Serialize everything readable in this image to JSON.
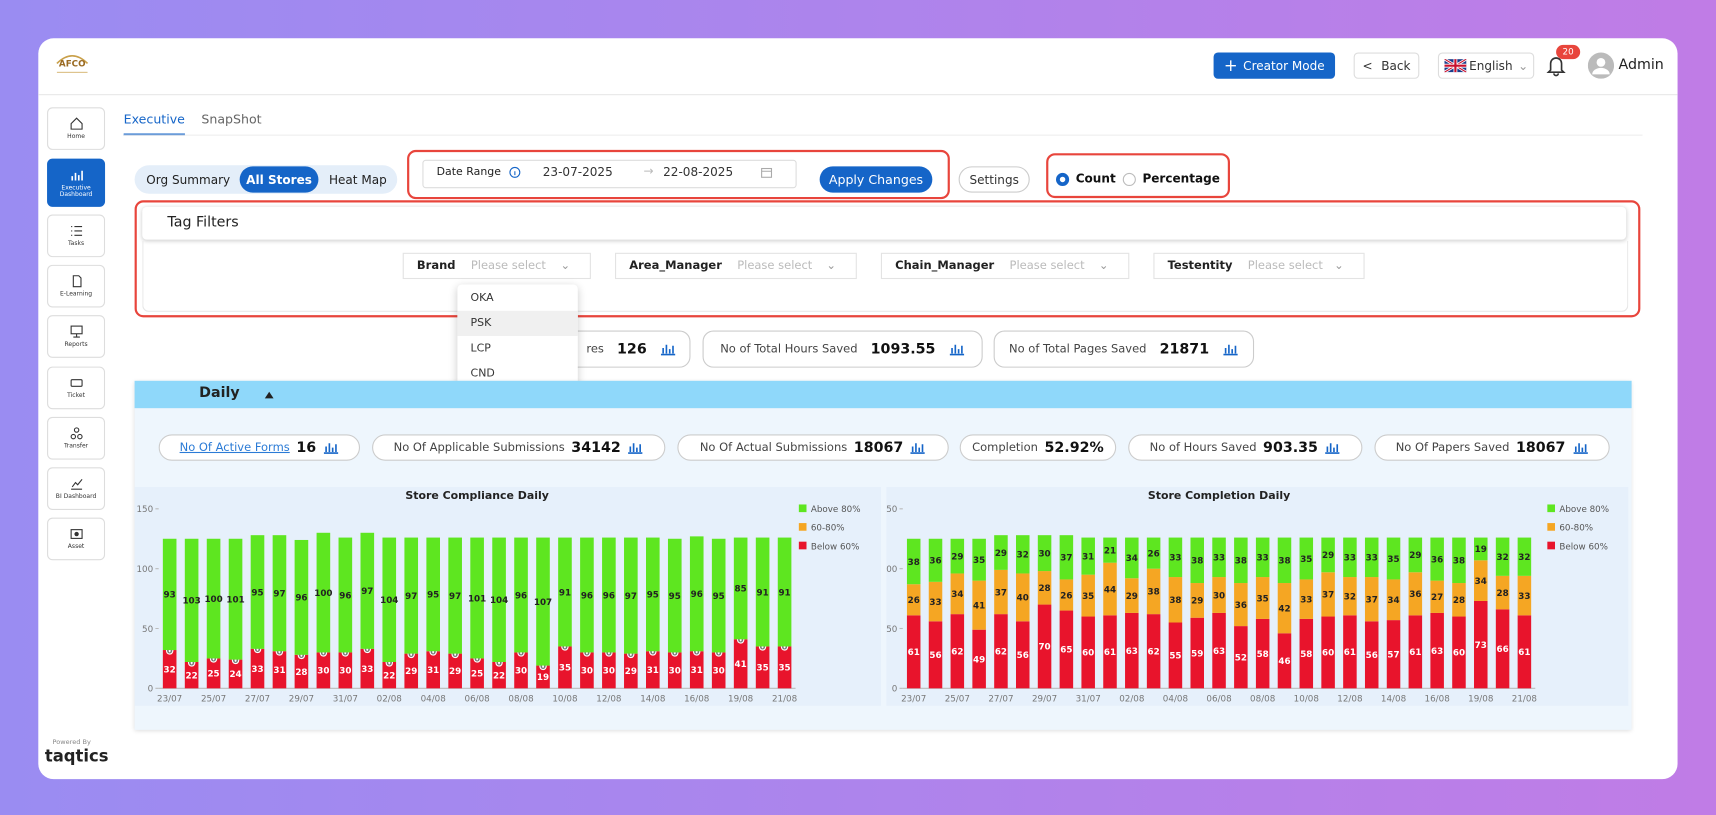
{
  "header": {
    "logo": "AFCO",
    "creator": "Creator Mode",
    "back": "Back",
    "language": "English",
    "notifications": "20",
    "user": "Admin"
  },
  "sidebar": {
    "items": [
      "Home",
      "Executive Dashboard",
      "Tasks",
      "E-Learning",
      "Reports",
      "Ticket",
      "Transfer",
      "BI Dashboard",
      "Asset"
    ],
    "powered_by": "Powered By",
    "brand": "taqtics"
  },
  "tabs": [
    "Executive",
    "SnapShot"
  ],
  "views": [
    "Org Summary",
    "All Stores",
    "Heat Map"
  ],
  "date_range": {
    "label": "Date Range",
    "start": "23-07-2025",
    "end": "22-08-2025"
  },
  "apply": "Apply Changes",
  "settings": "Settings",
  "modes": [
    "Count",
    "Percentage"
  ],
  "tag_filters": {
    "title": "Tag Filters",
    "filters": [
      {
        "label": "Brand",
        "placeholder": "Please select"
      },
      {
        "label": "Area_Manager",
        "placeholder": "Please select"
      },
      {
        "label": "Chain_Manager",
        "placeholder": "Please select"
      },
      {
        "label": "Testentity",
        "placeholder": "Please select"
      }
    ]
  },
  "dropdown": [
    "OKA",
    "PSK",
    "LCP",
    "CND"
  ],
  "summary": [
    {
      "label": "res",
      "value": "126"
    },
    {
      "label": "No of Total Hours Saved",
      "value": "1093.55"
    },
    {
      "label": "No of Total Pages Saved",
      "value": "21871"
    }
  ],
  "daily": {
    "title": "Daily",
    "kpis": [
      {
        "label": "No Of Active Forms",
        "value": "16"
      },
      {
        "label": "No Of Applicable Submissions",
        "value": "34142"
      },
      {
        "label": "No Of Actual Submissions",
        "value": "18067"
      },
      {
        "label": "Completion",
        "value": "52.92%"
      },
      {
        "label": "No of Hours Saved",
        "value": "903.35"
      },
      {
        "label": "No Of Papers Saved",
        "value": "18067"
      }
    ]
  },
  "chart_data": [
    {
      "type": "bar",
      "stacked": true,
      "title": "Store Compliance Daily",
      "categories": [
        "23/07",
        null,
        "25/07",
        null,
        "27/07",
        null,
        "29/07",
        null,
        "31/07",
        null,
        "02/08",
        null,
        "04/08",
        null,
        "06/08",
        null,
        "08/08",
        null,
        "10/08",
        null,
        "12/08",
        null,
        "14/08",
        null,
        "16/08",
        null,
        "19/08",
        null,
        "21/08"
      ],
      "series": [
        {
          "name": "Below 60%",
          "color": "#e8142c",
          "values": [
            32,
            22,
            25,
            24,
            33,
            31,
            28,
            30,
            30,
            33,
            22,
            29,
            31,
            29,
            25,
            22,
            30,
            19,
            35,
            30,
            30,
            29,
            31,
            30,
            31,
            30,
            41,
            35,
            35
          ]
        },
        {
          "name": "60-80%",
          "color": "#f5a623",
          "values": [
            0,
            0,
            0,
            0,
            0,
            0,
            0,
            0,
            0,
            0,
            0,
            0,
            0,
            0,
            0,
            0,
            0,
            0,
            0,
            0,
            0,
            0,
            0,
            0,
            0,
            0,
            0,
            0,
            0
          ]
        },
        {
          "name": "Above 80%",
          "color": "#5ee620",
          "values": [
            93,
            103,
            100,
            101,
            95,
            97,
            96,
            100,
            96,
            97,
            104,
            97,
            95,
            97,
            101,
            104,
            96,
            107,
            91,
            96,
            96,
            97,
            95,
            95,
            96,
            95,
            85,
            91,
            91
          ]
        }
      ],
      "ylim": [
        0,
        150
      ],
      "yticks": [
        0,
        50,
        100,
        150
      ],
      "legend": "right"
    },
    {
      "type": "bar",
      "stacked": true,
      "title": "Store Completion Daily",
      "categories": [
        "23/07",
        null,
        "25/07",
        null,
        "27/07",
        null,
        "29/07",
        null,
        "31/07",
        null,
        "02/08",
        null,
        "04/08",
        null,
        "06/08",
        null,
        "08/08",
        null,
        "10/08",
        null,
        "12/08",
        null,
        "14/08",
        null,
        "16/08",
        null,
        "19/08",
        null,
        "21/08"
      ],
      "series": [
        {
          "name": "Below 60%",
          "color": "#e8142c",
          "values": [
            61,
            56,
            62,
            49,
            62,
            56,
            70,
            65,
            60,
            61,
            63,
            62,
            55,
            59,
            63,
            52,
            58,
            46,
            58,
            60,
            61,
            56,
            57,
            61,
            63,
            60,
            73,
            66,
            61
          ]
        },
        {
          "name": "60-80%",
          "color": "#f5a623",
          "values": [
            26,
            33,
            34,
            41,
            37,
            40,
            28,
            26,
            35,
            44,
            29,
            38,
            38,
            29,
            30,
            36,
            35,
            42,
            33,
            37,
            32,
            37,
            34,
            36,
            27,
            28,
            34,
            28,
            33
          ]
        },
        {
          "name": "Above 80%",
          "color": "#5ee620",
          "values": [
            38,
            36,
            29,
            35,
            29,
            32,
            30,
            37,
            31,
            21,
            34,
            26,
            33,
            38,
            33,
            38,
            33,
            38,
            35,
            29,
            33,
            33,
            35,
            29,
            36,
            38,
            19,
            32,
            32
          ]
        }
      ],
      "ylim": [
        0,
        150
      ],
      "yticks": [
        0,
        50,
        100,
        150
      ],
      "legend": "right"
    }
  ]
}
